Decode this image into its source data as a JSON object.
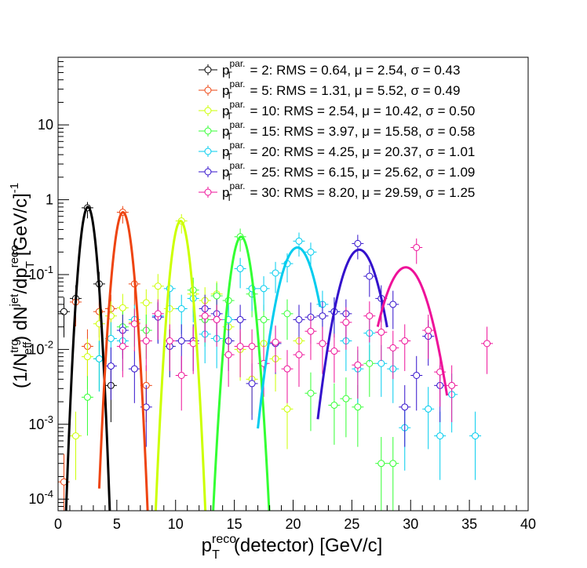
{
  "chart_data": {
    "type": "scatter",
    "xlabel": "p_T^reco(detector) [GeV/c]",
    "ylabel": "(1/N_eff^trg) dN^jet/dp_T^reco [GeV/c]^-1",
    "xlim": [
      0,
      40
    ],
    "ylim": [
      7e-05,
      80
    ],
    "yscale": "log",
    "grid": false,
    "legend_position": "top-right",
    "x_ticks": [
      "0",
      "5",
      "10",
      "15",
      "20",
      "25",
      "30",
      "35",
      "40"
    ],
    "y_ticks": [
      "10^-4",
      "10^-3",
      "10^-2",
      "10^-1",
      "1",
      "10"
    ],
    "series": [
      {
        "name": "p_T^par. = 2: RMS = 0.64, μ = 2.54, σ = 0.43",
        "legend": {
          "prefix": "p",
          "sub": "T",
          "sup": "par.",
          "rest": " = 2: RMS = 0.64, μ = 2.54, σ = 0.43"
        },
        "color": "#000000",
        "fit": {
          "mu": 2.54,
          "sigma": 0.43,
          "amp": 0.8,
          "xmin": 0.5,
          "xmax": 4.6
        },
        "points": [
          [
            0.5,
            0.032
          ],
          [
            1.5,
            0.048
          ],
          [
            2.5,
            0.78
          ],
          [
            3.5,
            0.075
          ],
          [
            4.5,
            0.0033
          ]
        ]
      },
      {
        "name": "p_T^par. = 5: RMS = 1.31, μ = 5.52, σ = 0.49",
        "legend": {
          "prefix": "p",
          "sub": "T",
          "sup": "par.",
          "rest": " = 5: RMS = 1.31, μ = 5.52, σ = 0.49"
        },
        "color": "#ee4411",
        "fit": {
          "mu": 5.52,
          "sigma": 0.49,
          "amp": 0.68,
          "xmin": 3.5,
          "xmax": 7.8
        },
        "points": [
          [
            0.5,
            0.00017
          ],
          [
            1.5,
            0.043
          ],
          [
            2.5,
            0.011
          ],
          [
            3.5,
            0.032
          ],
          [
            4.5,
            0.035
          ],
          [
            5.5,
            0.68
          ],
          [
            6.5,
            0.075
          ],
          [
            7.5,
            0.0033
          ]
        ]
      },
      {
        "name": "p_T^par. = 10: RMS = 2.54, μ = 10.42, σ = 0.50",
        "legend": {
          "prefix": "p",
          "sub": "T",
          "sup": "par.",
          "rest": " = 10: RMS = 2.54, μ = 10.42, σ = 0.50"
        },
        "color": "#ccff00",
        "fit": {
          "mu": 10.42,
          "sigma": 0.5,
          "amp": 0.52,
          "xmin": 8.3,
          "xmax": 12.7
        },
        "points": [
          [
            1.5,
            0.0007
          ],
          [
            2.5,
            0.008
          ],
          [
            3.5,
            0.022
          ],
          [
            4.5,
            0.028
          ],
          [
            5.5,
            0.036
          ],
          [
            6.5,
            0.023
          ],
          [
            7.5,
            0.042
          ],
          [
            8.5,
            0.07
          ],
          [
            9.5,
            0.035
          ],
          [
            10.5,
            0.52
          ],
          [
            11.5,
            0.055
          ],
          [
            12.5,
            0.045
          ],
          [
            13.5,
            0.055
          ],
          [
            14.5,
            0.02
          ],
          [
            15.5,
            0.01
          ],
          [
            16.5,
            0.004
          ],
          [
            17.5,
            0.012
          ],
          [
            18.5,
            0.0075
          ],
          [
            19.5,
            0.0016
          ],
          [
            20.5,
            0.013
          ]
        ]
      },
      {
        "name": "p_T^par. = 15: RMS = 3.97, μ = 15.58, σ = 0.58",
        "legend": {
          "prefix": "p",
          "sub": "T",
          "sup": "par.",
          "rest": " = 15: RMS = 3.97, μ = 15.58, σ = 0.58"
        },
        "color": "#33ff33",
        "fit": {
          "mu": 15.58,
          "sigma": 0.58,
          "amp": 0.32,
          "xmin": 13.2,
          "xmax": 18.0
        },
        "points": [
          [
            2.5,
            0.0023
          ],
          [
            3.5,
            0.0075
          ],
          [
            5.5,
            0.02
          ],
          [
            7.5,
            0.018
          ],
          [
            9.5,
            0.011
          ],
          [
            11.5,
            0.062
          ],
          [
            12.5,
            0.025
          ],
          [
            13.5,
            0.052
          ],
          [
            14.5,
            0.045
          ],
          [
            15.5,
            0.32
          ],
          [
            16.5,
            0.055
          ],
          [
            17.5,
            0.025
          ],
          [
            19.5,
            0.03
          ],
          [
            21.5,
            0.0026
          ],
          [
            23.5,
            0.0018
          ],
          [
            24.5,
            0.0022
          ],
          [
            25.5,
            0.0017
          ],
          [
            26.5,
            0.0065
          ],
          [
            27.5,
            0.0003
          ],
          [
            28.5,
            0.0003
          ]
        ]
      },
      {
        "name": "p_T^par. = 20: RMS = 4.25, μ = 20.37, σ = 1.01",
        "legend": {
          "prefix": "p",
          "sub": "T",
          "sup": "par.",
          "rest": " = 20: RMS = 4.25, μ = 20.37, σ = 1.01"
        },
        "color": "#00ccee",
        "fit": {
          "mu": 20.37,
          "sigma": 1.01,
          "amp": 0.23,
          "xmin": 17.0,
          "xmax": 22.3
        },
        "points": [
          [
            3.5,
            0.0075
          ],
          [
            4.5,
            0.014
          ],
          [
            5.5,
            0.013
          ],
          [
            6.5,
            0.025
          ],
          [
            8.5,
            0.028
          ],
          [
            9.5,
            0.065
          ],
          [
            10.5,
            0.035
          ],
          [
            11.5,
            0.048
          ],
          [
            12.5,
            0.016
          ],
          [
            13.5,
            0.014
          ],
          [
            14.5,
            0.025
          ],
          [
            15.5,
            0.12
          ],
          [
            16.5,
            0.065
          ],
          [
            17.5,
            0.065
          ],
          [
            18.5,
            0.105
          ],
          [
            19.5,
            0.14
          ],
          [
            20.5,
            0.28
          ],
          [
            21.5,
            0.2
          ],
          [
            22.5,
            0.04
          ],
          [
            23.5,
            0.032
          ],
          [
            24.5,
            0.013
          ],
          [
            25.5,
            0.0055
          ],
          [
            26.5,
            0.0165
          ],
          [
            27.5,
            0.0065
          ],
          [
            28.5,
            0.0055
          ],
          [
            29.5,
            0.0009
          ],
          [
            31.5,
            0.0016
          ],
          [
            32.5,
            0.0007
          ],
          [
            33.5,
            0.0025
          ],
          [
            35.5,
            0.0007
          ]
        ]
      },
      {
        "name": "p_T^par. = 25: RMS = 6.15, μ = 25.62, σ = 1.09",
        "legend": {
          "prefix": "p",
          "sub": "T",
          "sup": "par.",
          "rest": " = 25: RMS = 6.15, μ = 25.62, σ = 1.09"
        },
        "color": "#3311cc",
        "fit": {
          "mu": 25.62,
          "sigma": 1.09,
          "amp": 0.215,
          "xmin": 22.1,
          "xmax": 28.0
        },
        "points": [
          [
            4.5,
            0.006
          ],
          [
            5.5,
            0.018
          ],
          [
            6.5,
            0.0055
          ],
          [
            7.5,
            0.0017
          ],
          [
            8.5,
            0.027
          ],
          [
            9.5,
            0.011
          ],
          [
            10.5,
            0.013
          ],
          [
            11.5,
            0.013
          ],
          [
            12.5,
            0.035
          ],
          [
            13.5,
            0.03
          ],
          [
            14.5,
            0.013
          ],
          [
            15.5,
            0.025
          ],
          [
            16.5,
            0.0035
          ],
          [
            18.5,
            0.012
          ],
          [
            20.5,
            0.025
          ],
          [
            21.5,
            0.027
          ],
          [
            22.5,
            0.028
          ],
          [
            23.5,
            0.032
          ],
          [
            24.5,
            0.03
          ],
          [
            25.5,
            0.26
          ],
          [
            26.5,
            0.095
          ],
          [
            27.5,
            0.048
          ],
          [
            28.5,
            0.04
          ],
          [
            29.5,
            0.0017
          ],
          [
            30.5,
            0.0045
          ],
          [
            31.5,
            0.015
          ],
          [
            32.5,
            0.0033
          ]
        ]
      },
      {
        "name": "p_T^par. = 30: RMS = 8.20, μ = 29.59, σ = 1.25",
        "legend": {
          "prefix": "p",
          "sub": "T",
          "sup": "par.",
          "rest": " = 30: RMS = 8.20, μ = 29.59, σ = 1.25"
        },
        "color": "#ee1199",
        "fit": {
          "mu": 29.59,
          "sigma": 1.25,
          "amp": 0.125,
          "xmin": 27.2,
          "xmax": 33.1
        },
        "points": [
          [
            5.5,
            0.011
          ],
          [
            6.5,
            0.022
          ],
          [
            7.5,
            0.013
          ],
          [
            8.5,
            0.03
          ],
          [
            9.5,
            0.013
          ],
          [
            10.5,
            0.0045
          ],
          [
            11.5,
            0.012
          ],
          [
            12.5,
            0.028
          ],
          [
            13.5,
            0.025
          ],
          [
            14.5,
            0.0085
          ],
          [
            15.5,
            0.011
          ],
          [
            16.5,
            0.011
          ],
          [
            17.5,
            0.0065
          ],
          [
            18.5,
            0.0125
          ],
          [
            19.5,
            0.0055
          ],
          [
            20.5,
            0.0085
          ],
          [
            21.5,
            0.0175
          ],
          [
            22.5,
            0.012
          ],
          [
            23.5,
            0.0095
          ],
          [
            24.5,
            0.023
          ],
          [
            25.5,
            0.0062
          ],
          [
            26.5,
            0.028
          ],
          [
            27.5,
            0.017
          ],
          [
            28.5,
            0.0105
          ],
          [
            29.5,
            0.013
          ],
          [
            30.5,
            0.23
          ],
          [
            31.5,
            0.018
          ],
          [
            32.5,
            0.005
          ],
          [
            33.5,
            0.0033
          ],
          [
            36.5,
            0.012
          ]
        ]
      }
    ]
  }
}
